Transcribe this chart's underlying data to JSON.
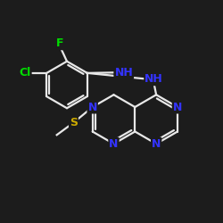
{
  "background_color": "#1c1c1c",
  "bond_color": "#e8e8e8",
  "atom_colors": {
    "F": "#00dd00",
    "Cl": "#00dd00",
    "N": "#3333ff",
    "S": "#ccaa00",
    "NH": "#3333ff"
  },
  "figsize": [
    2.5,
    2.5
  ],
  "dpi": 100
}
